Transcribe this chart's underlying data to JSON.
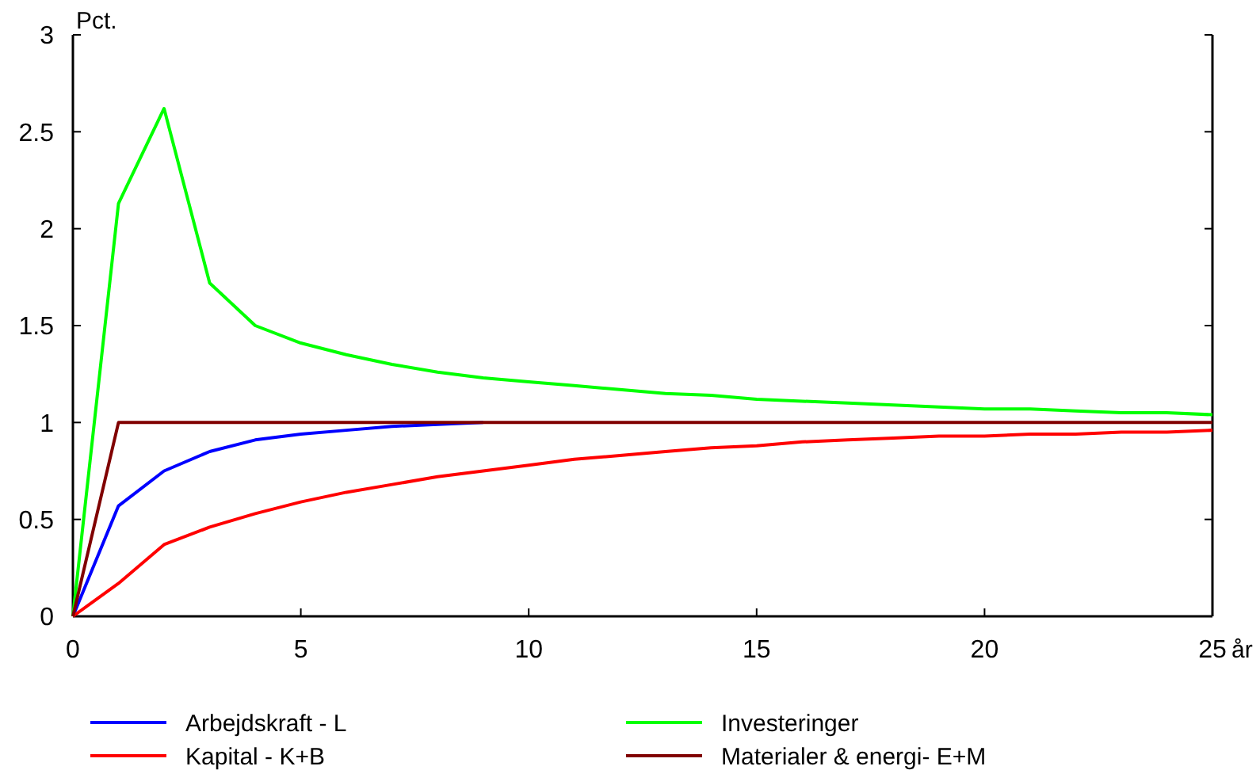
{
  "chart_data": {
    "type": "line",
    "xlabel": "år",
    "ylabel": "Pct.",
    "x": [
      0,
      1,
      2,
      3,
      4,
      5,
      6,
      7,
      8,
      9,
      10,
      11,
      12,
      13,
      14,
      15,
      16,
      17,
      18,
      19,
      20,
      21,
      22,
      23,
      24,
      25
    ],
    "series": [
      {
        "name": "Arbejdskraft - L",
        "color": "#0000ff",
        "values": [
          0,
          0.57,
          0.75,
          0.85,
          0.91,
          0.94,
          0.96,
          0.98,
          0.99,
          1,
          null,
          null,
          null,
          null,
          null,
          null,
          null,
          null,
          null,
          null,
          null,
          null,
          null,
          null,
          null,
          null
        ]
      },
      {
        "name": "Investeringer",
        "color": "#00ff00",
        "values": [
          0,
          2.13,
          2.62,
          1.72,
          1.5,
          1.41,
          1.35,
          1.3,
          1.26,
          1.23,
          1.21,
          1.19,
          1.17,
          1.15,
          1.14,
          1.12,
          1.11,
          1.1,
          1.09,
          1.08,
          1.07,
          1.07,
          1.06,
          1.05,
          1.05,
          1.04
        ]
      },
      {
        "name": "Kapital - K+B",
        "color": "#ff0000",
        "values": [
          0,
          0.17,
          0.37,
          0.46,
          0.53,
          0.59,
          0.64,
          0.68,
          0.72,
          0.75,
          0.78,
          0.81,
          0.83,
          0.85,
          0.87,
          0.88,
          0.9,
          0.91,
          0.92,
          0.93,
          0.93,
          0.94,
          0.94,
          0.95,
          0.95,
          0.96
        ]
      },
      {
        "name": "Materialer & energi- E+M",
        "color": "#800000",
        "values": [
          0,
          1,
          1,
          1,
          1,
          1,
          1,
          1,
          1,
          1,
          1,
          1,
          1,
          1,
          1,
          1,
          1,
          1,
          1,
          1,
          1,
          1,
          1,
          1,
          1,
          1
        ]
      }
    ],
    "xlim": [
      0,
      25
    ],
    "xticks": [
      0,
      5,
      10,
      15,
      20,
      25
    ],
    "ylim": [
      0,
      3
    ],
    "yticks": [
      0,
      0.5,
      1,
      1.5,
      2,
      2.5,
      3
    ],
    "grid": false,
    "legend": "bottom"
  }
}
